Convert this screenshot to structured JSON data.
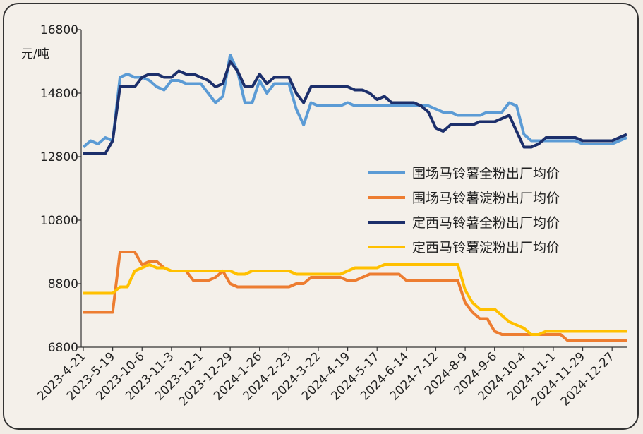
{
  "chart_data": {
    "type": "line",
    "y_label": "元/吨",
    "categories": [
      "2023-4-21",
      null,
      null,
      null,
      "2023-5-19",
      null,
      null,
      null,
      "2023-10-6",
      null,
      null,
      null,
      "2023-11-3",
      null,
      null,
      null,
      "2023-12-1",
      null,
      null,
      null,
      "2023-12-29",
      null,
      null,
      null,
      "2024-1-26",
      null,
      null,
      null,
      "2024-2-23",
      null,
      null,
      null,
      "2024-3-22",
      null,
      null,
      null,
      "2024-4-19",
      null,
      null,
      null,
      "2024-5-17",
      null,
      null,
      null,
      "2024-6-14",
      null,
      null,
      null,
      "2024-7-12",
      null,
      null,
      null,
      "2024-8-9",
      null,
      null,
      null,
      "2024-9-6",
      null,
      null,
      null,
      "2024-10-4",
      null,
      null,
      null,
      "2024-11-1",
      null,
      null,
      null,
      "2024-11-29",
      null,
      null,
      null,
      "2024-12-27",
      null,
      null
    ],
    "series": [
      {
        "name": "围场马铃薯全粉出厂均价",
        "color": "#5b9bd5",
        "values": [
          13100,
          13300,
          13200,
          13400,
          13300,
          15300,
          15400,
          15300,
          15300,
          15200,
          15000,
          14900,
          15200,
          15200,
          15100,
          15100,
          15100,
          14800,
          14500,
          14700,
          16000,
          15500,
          14500,
          14500,
          15200,
          14800,
          15100,
          15100,
          15100,
          14300,
          13800,
          14500,
          14400,
          14400,
          14400,
          14400,
          14500,
          14400,
          14400,
          14400,
          14400,
          14400,
          14400,
          14400,
          14400,
          14400,
          14400,
          14400,
          14300,
          14200,
          14200,
          14100,
          14100,
          14100,
          14100,
          14200,
          14200,
          14200,
          14500,
          14400,
          13500,
          13300,
          13300,
          13300,
          13300,
          13300,
          13300,
          13300,
          13200,
          13200,
          13200,
          13200,
          13200,
          13300,
          13400
        ]
      },
      {
        "name": "围场马铃薯淀粉出厂均价",
        "color": "#ed7d31",
        "values": [
          7900,
          7900,
          7900,
          7900,
          7900,
          9800,
          9800,
          9800,
          9400,
          9500,
          9500,
          9300,
          9200,
          9200,
          9200,
          8900,
          8900,
          8900,
          9000,
          9200,
          8800,
          8700,
          8700,
          8700,
          8700,
          8700,
          8700,
          8700,
          8700,
          8800,
          8800,
          9000,
          9000,
          9000,
          9000,
          9000,
          8900,
          8900,
          9000,
          9100,
          9100,
          9100,
          9100,
          9100,
          8900,
          8900,
          8900,
          8900,
          8900,
          8900,
          8900,
          8900,
          8200,
          7900,
          7700,
          7700,
          7300,
          7200,
          7200,
          7200,
          7200,
          7200,
          7200,
          7200,
          7200,
          7200,
          7000,
          7000,
          7000,
          7000,
          7000,
          7000,
          7000,
          7000,
          7000
        ]
      },
      {
        "name": "定西马铃薯全粉出厂均价",
        "color": "#1c2f6b",
        "values": [
          12900,
          12900,
          12900,
          12900,
          13300,
          15000,
          15000,
          15000,
          15300,
          15400,
          15400,
          15300,
          15300,
          15500,
          15400,
          15400,
          15300,
          15200,
          15000,
          15100,
          15800,
          15500,
          15000,
          15000,
          15400,
          15100,
          15300,
          15300,
          15300,
          14800,
          14500,
          15000,
          15000,
          15000,
          15000,
          15000,
          15000,
          14900,
          14900,
          14800,
          14600,
          14700,
          14500,
          14500,
          14500,
          14500,
          14400,
          14200,
          13700,
          13600,
          13800,
          13800,
          13800,
          13800,
          13900,
          13900,
          13900,
          14000,
          14100,
          13600,
          13100,
          13100,
          13200,
          13400,
          13400,
          13400,
          13400,
          13400,
          13300,
          13300,
          13300,
          13300,
          13300,
          13400,
          13500
        ]
      },
      {
        "name": "定西马铃薯淀粉出厂均价",
        "color": "#ffc000",
        "values": [
          8500,
          8500,
          8500,
          8500,
          8500,
          8700,
          8700,
          9200,
          9300,
          9400,
          9300,
          9300,
          9200,
          9200,
          9200,
          9200,
          9200,
          9200,
          9200,
          9200,
          9200,
          9100,
          9100,
          9200,
          9200,
          9200,
          9200,
          9200,
          9200,
          9100,
          9100,
          9100,
          9100,
          9100,
          9100,
          9100,
          9200,
          9300,
          9300,
          9300,
          9300,
          9400,
          9400,
          9400,
          9400,
          9400,
          9400,
          9400,
          9400,
          9400,
          9400,
          9400,
          8600,
          8200,
          8000,
          8000,
          8000,
          7800,
          7600,
          7500,
          7400,
          7200,
          7200,
          7300,
          7300,
          7300,
          7300,
          7300,
          7300,
          7300,
          7300,
          7300,
          7300,
          7300,
          7300
        ]
      }
    ],
    "ylim": [
      6800,
      16800
    ],
    "yticks": [
      6800,
      8800,
      10800,
      12800,
      14800,
      16800
    ],
    "legend": "right"
  }
}
